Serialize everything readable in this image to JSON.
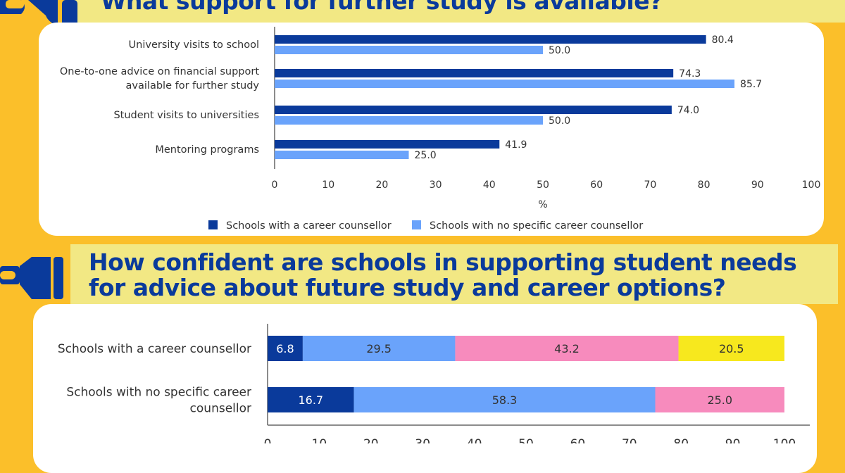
{
  "colors": {
    "background": "#fbbf2a",
    "banner": "#f2e884",
    "dark_blue": "#0a3a9b",
    "light_blue": "#6aa3fb",
    "pink": "#f78bbd",
    "yellow": "#f7e81e"
  },
  "icons": [
    "paintbrush-icon",
    "paintbrush-icon"
  ],
  "chart_data": [
    {
      "type": "bar",
      "orientation": "horizontal",
      "title": "What support for further study is available?",
      "categories": [
        "University visits to school",
        "One-to-one advice on financial support available for further study",
        "Student visits to universities",
        "Mentoring programs"
      ],
      "category_lines": [
        [
          "University visits to school"
        ],
        [
          "One-to-one advice on financial support",
          "available for further study"
        ],
        [
          "Student visits to universities"
        ],
        [
          "Mentoring programs"
        ]
      ],
      "series": [
        {
          "name": "Schools with a career counsellor",
          "color": "#0a3a9b",
          "values": [
            80.4,
            74.3,
            74.0,
            41.9
          ]
        },
        {
          "name": "Schools with no specific career counsellor",
          "color": "#6aa3fb",
          "values": [
            50.0,
            85.7,
            50.0,
            25.0
          ]
        }
      ],
      "xlabel": "%",
      "xlim": [
        0,
        100
      ],
      "xticks": [
        0,
        10,
        20,
        30,
        40,
        50,
        60,
        70,
        80,
        90,
        100
      ],
      "legend": "bottom",
      "grid": false
    },
    {
      "type": "bar",
      "orientation": "horizontal",
      "stacked": true,
      "title": "How confident are schools in supporting student needs for advice about future study and career options?",
      "title_lines": [
        "How confident are schools in supporting student needs",
        "for advice about future study and career options?"
      ],
      "categories": [
        "Schools with a career counsellor",
        "Schools with no specific career counsellor"
      ],
      "category_lines": [
        [
          "Schools with a career counsellor"
        ],
        [
          "Schools with no specific career",
          "counsellor"
        ]
      ],
      "series": [
        {
          "color": "#0a3a9b",
          "values": [
            6.8,
            16.7
          ]
        },
        {
          "color": "#6aa3fb",
          "values": [
            29.5,
            58.3
          ]
        },
        {
          "color": "#f78bbd",
          "values": [
            43.2,
            25.0
          ]
        },
        {
          "color": "#f7e81e",
          "values": [
            20.5,
            0
          ]
        }
      ],
      "xlim": [
        0,
        100
      ],
      "xticks": [
        0,
        10,
        20,
        30,
        40,
        50,
        60,
        70,
        80,
        90,
        100
      ],
      "grid": false
    }
  ]
}
